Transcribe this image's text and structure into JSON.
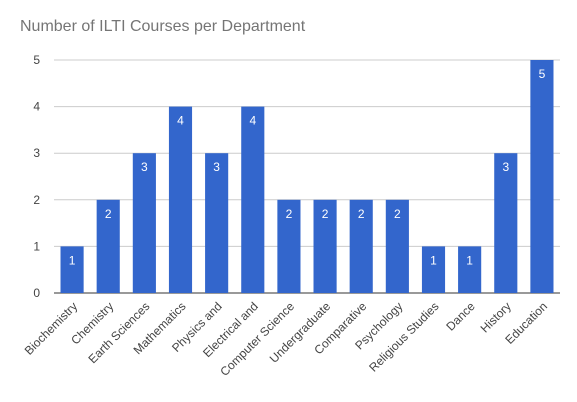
{
  "chart_data": {
    "type": "bar",
    "title": "Number of ILTI Courses per Department",
    "categories": [
      "Biochemistry",
      "Chemistry",
      "Earth Sciences",
      "Mathematics",
      "Physics and",
      "Electrical and",
      "Computer Science",
      "Undergraduate",
      "Comparative",
      "Psychology",
      "Religious Studies",
      "Dance",
      "History",
      "Education"
    ],
    "values": [
      1,
      2,
      3,
      4,
      3,
      4,
      2,
      2,
      2,
      2,
      1,
      1,
      3,
      5
    ],
    "xlabel": "",
    "ylabel": "",
    "ylim": [
      0,
      5
    ],
    "yticks": [
      0,
      1,
      2,
      3,
      4,
      5
    ],
    "grid": true,
    "bar_color": "#3366cc",
    "grid_color": "#cccccc",
    "data_labels": true
  }
}
